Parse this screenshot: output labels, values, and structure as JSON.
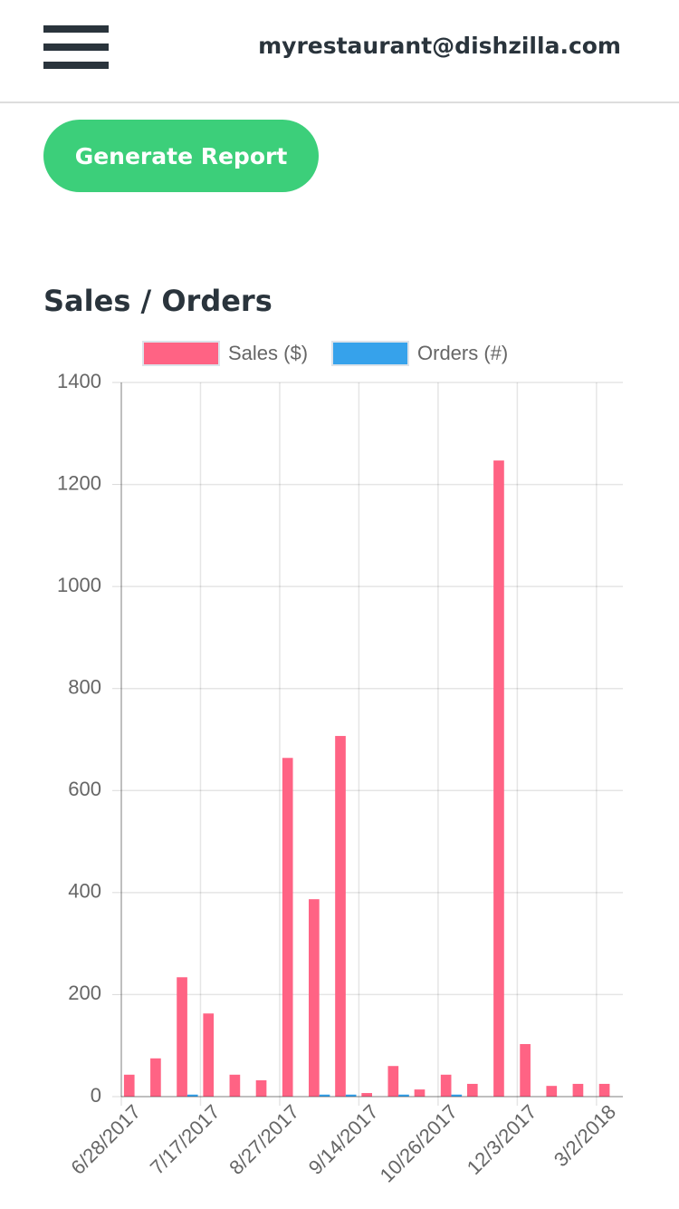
{
  "header": {
    "email": "myrestaurant@dishzilla.com"
  },
  "button": {
    "label": "Generate Report"
  },
  "chart_data": {
    "type": "bar",
    "title": "Sales / Orders",
    "categories": [
      "6/28/2017",
      null,
      null,
      "7/17/2017",
      null,
      null,
      "8/27/2017",
      null,
      null,
      "9/14/2017",
      null,
      null,
      "10/26/2017",
      null,
      null,
      "12/3/2017",
      null,
      null,
      "3/2/2018"
    ],
    "series": [
      {
        "name": "Sales ($)",
        "color": "#ff6384",
        "values": [
          43,
          75,
          234,
          163,
          43,
          32,
          664,
          387,
          707,
          7,
          60,
          14,
          43,
          25,
          1247,
          103,
          21,
          25,
          25
        ]
      },
      {
        "name": "Orders (#)",
        "color": "#36a2eb",
        "values": [
          0,
          0,
          4,
          0,
          0,
          0,
          0,
          4,
          4,
          0,
          4,
          0,
          4,
          0,
          0,
          0,
          0,
          0,
          0
        ]
      }
    ],
    "ylim": [
      0,
      1400
    ],
    "yticks": [
      0,
      200,
      400,
      600,
      800,
      1000,
      1200,
      1400
    ],
    "grid": true
  }
}
